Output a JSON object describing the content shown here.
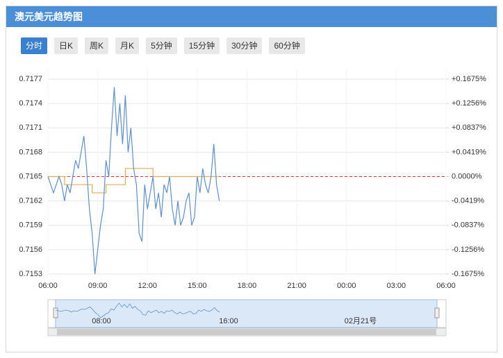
{
  "header": {
    "title": "澳元美元趋势图"
  },
  "tabs": [
    "分时",
    "日K",
    "周K",
    "月K",
    "5分钟",
    "15分钟",
    "30分钟",
    "60分钟"
  ],
  "active_tab": 0,
  "chart_data": {
    "type": "line",
    "x": [
      "06:00",
      "06:10",
      "06:20",
      "06:30",
      "06:40",
      "06:50",
      "07:00",
      "07:10",
      "07:20",
      "07:30",
      "07:40",
      "07:50",
      "08:00",
      "08:10",
      "08:20",
      "08:30",
      "08:40",
      "08:50",
      "09:00",
      "09:10",
      "09:20",
      "09:30",
      "09:40",
      "09:50",
      "10:00",
      "10:10",
      "10:20",
      "10:30",
      "10:40",
      "10:50",
      "11:00",
      "11:10",
      "11:20",
      "11:30",
      "11:40",
      "11:50",
      "12:00",
      "12:10",
      "12:20",
      "12:30",
      "12:40",
      "12:50",
      "13:00",
      "13:10",
      "13:20",
      "13:30",
      "13:40",
      "13:50",
      "14:00",
      "14:10",
      "14:20",
      "14:30",
      "14:40",
      "14:50",
      "15:00",
      "15:10",
      "15:20",
      "15:30",
      "15:40",
      "15:50",
      "16:00",
      "16:10",
      "16:20"
    ],
    "series": [
      {
        "color": "#5b8fd6",
        "values": [
          0.7165,
          0.7164,
          0.7163,
          0.7164,
          0.7165,
          0.7164,
          0.7162,
          0.7164,
          0.7163,
          0.7165,
          0.7167,
          0.7166,
          0.7168,
          0.717,
          0.7166,
          0.7161,
          0.7158,
          0.7153,
          0.7156,
          0.7159,
          0.7161,
          0.7167,
          0.7165,
          0.7171,
          0.7176,
          0.717,
          0.7174,
          0.7169,
          0.7175,
          0.7168,
          0.7171,
          0.7166,
          0.7164,
          0.7158,
          0.7157,
          0.7164,
          0.7161,
          0.7163,
          0.7165,
          0.7161,
          0.7163,
          0.716,
          0.7164,
          0.7163,
          0.7165,
          0.7161,
          0.7159,
          0.7162,
          0.7159,
          0.716,
          0.7162,
          0.7163,
          0.7159,
          0.716,
          0.7165,
          0.7163,
          0.7166,
          0.7164,
          0.7163,
          0.7165,
          0.7169,
          0.7164,
          0.7162
        ]
      }
    ],
    "average": {
      "color": "#e0b050",
      "step": true,
      "x": [
        "06:00",
        "07:00",
        "08:40",
        "09:30",
        "10:40",
        "12:20",
        "16:20"
      ],
      "values": [
        0.7165,
        0.7164,
        0.7163,
        0.7164,
        0.7166,
        0.7165,
        0.7165
      ]
    },
    "prev_close": 0.7165,
    "ylim": [
      0.7153,
      0.7177
    ],
    "yticks": [
      0.7153,
      0.7156,
      0.7159,
      0.7162,
      0.7165,
      0.7168,
      0.7171,
      0.7174,
      0.7177
    ],
    "y2lim": [
      -0.1675,
      0.1675
    ],
    "y2ticks": [
      {
        "value": -0.1675,
        "label": "-0.1675%"
      },
      {
        "value": -0.1256,
        "label": "-0.1256%"
      },
      {
        "value": -0.0837,
        "label": "-0.0837%"
      },
      {
        "value": -0.0419,
        "label": "-0.0419%"
      },
      {
        "value": 0,
        "label": "0.0000%"
      },
      {
        "value": 0.0419,
        "label": "+0.0419%"
      },
      {
        "value": 0.0837,
        "label": "+0.0837%"
      },
      {
        "value": 0.1256,
        "label": "+0.1256%"
      },
      {
        "value": 0.1675,
        "label": "+0.1675%"
      }
    ],
    "xticks": [
      "06:00",
      "09:00",
      "12:00",
      "15:00",
      "18:00",
      "21:00",
      "00:00",
      "03:00",
      "06:00"
    ],
    "grid": true
  },
  "navigator": {
    "labels": [
      "08:00",
      "16:00",
      "02月21号"
    ]
  }
}
